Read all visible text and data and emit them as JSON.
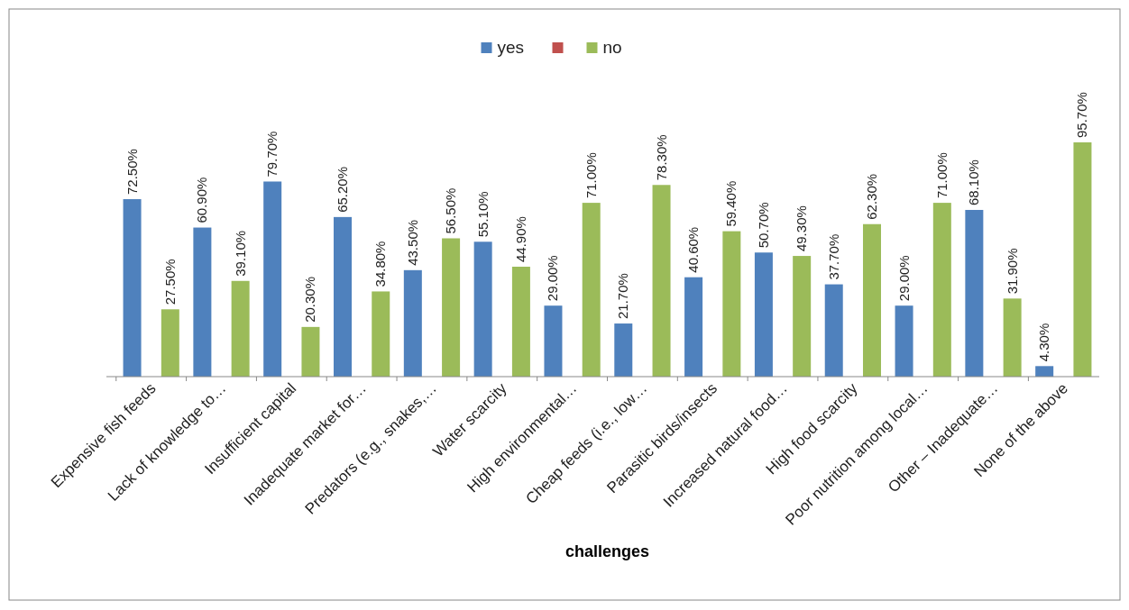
{
  "chart_data": {
    "type": "bar",
    "xlabel": "challenges",
    "legend": "top",
    "grid": false,
    "categories": [
      "Expensive fish feeds",
      "Lack of knowledge to…",
      "Insufficient capital",
      "Inadequate market for…",
      "Predators (e.g., snakes,…",
      "Water scarcity",
      "High environmental…",
      "Cheap feeds (i.e., low…",
      "Parasitic birds/insects",
      "Increased natural food…",
      "High food scarcity",
      "Poor nutrition among local…",
      "Other – Inadequate…",
      "None of the above"
    ],
    "series": [
      {
        "name": "yes",
        "color": "#4f81bd",
        "values": [
          72.5,
          60.9,
          79.7,
          65.2,
          43.5,
          55.1,
          29.0,
          21.7,
          40.6,
          50.7,
          37.7,
          29.0,
          68.1,
          4.3
        ],
        "value_labels": [
          "72.50%",
          "60.90%",
          "79.70%",
          "65.20%",
          "43.50%",
          "55.10%",
          "29.00%",
          "21.70%",
          "40.60%",
          "50.70%",
          "37.70%",
          "29.00%",
          "68.10%",
          "4.30%"
        ]
      },
      {
        "color": "#c0504d",
        "values": [
          null,
          null,
          null,
          null,
          null,
          null,
          null,
          null,
          null,
          null,
          null,
          null,
          null,
          null
        ]
      },
      {
        "name": "no",
        "color": "#9bbb59",
        "values": [
          27.5,
          39.1,
          20.3,
          34.8,
          56.5,
          44.9,
          71.0,
          78.3,
          59.4,
          49.3,
          62.3,
          71.0,
          31.9,
          95.7
        ],
        "value_labels": [
          "27.50%",
          "39.10%",
          "20.30%",
          "34.80%",
          "56.50%",
          "44.90%",
          "71.00%",
          "78.30%",
          "59.40%",
          "49.30%",
          "62.30%",
          "71.00%",
          "31.90%",
          "95.70%"
        ]
      }
    ]
  }
}
